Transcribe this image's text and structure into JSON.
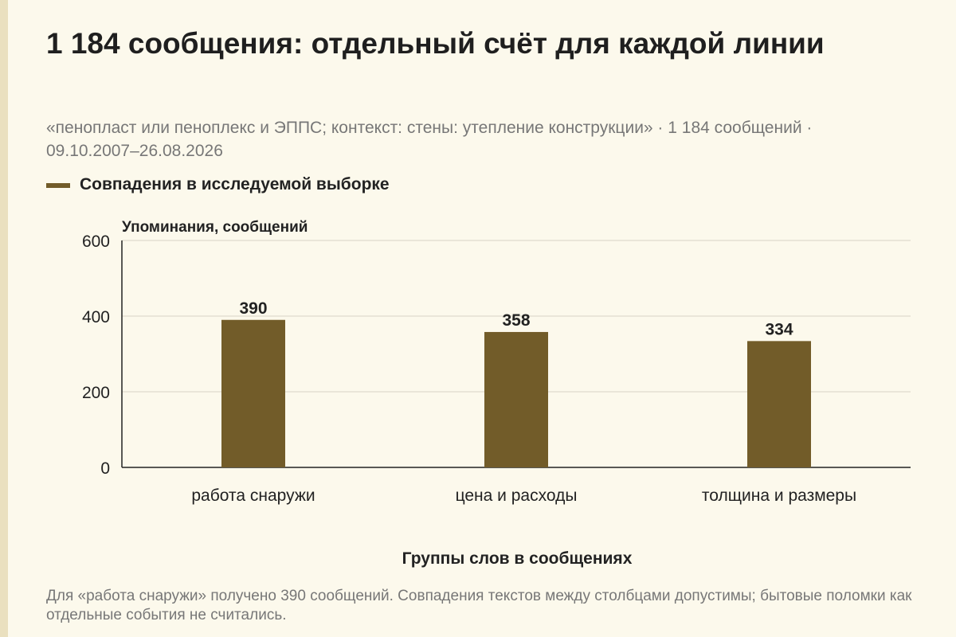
{
  "title": "1 184 сообщения: отдельный счёт для каждой линии",
  "subtitle": "«пенопласт или пеноплекс и ЭППС; контекст: стены: утепление конструкции» · 1 184 сообщений · 09.10.2007–26.08.2026",
  "legend": {
    "label": "Совпадения в исследуемой выборке"
  },
  "note": "Для «работа снаружи» получено 390 сообщений. Совпадения текстов между столбцами допустимы; бытовые поломки как отдельные события не считались.",
  "colors": {
    "bar": "#725C29",
    "background": "#FCF9EC",
    "grid": "#D8D4C6"
  },
  "chart_data": {
    "type": "bar",
    "title": "1 184 сообщения: отдельный счёт для каждой линии",
    "xlabel": "Группы слов в сообщениях",
    "ylabel": "Упоминания, сообщений",
    "categories": [
      "работа снаружи",
      "цена и расходы",
      "толщина и размеры"
    ],
    "series": [
      {
        "name": "Совпадения в исследуемой выборке",
        "values": [
          390,
          358,
          334
        ]
      }
    ],
    "ylim": [
      0,
      600
    ],
    "yticks": [
      0,
      200,
      400,
      600
    ],
    "grid": true,
    "legend": "top-left"
  }
}
